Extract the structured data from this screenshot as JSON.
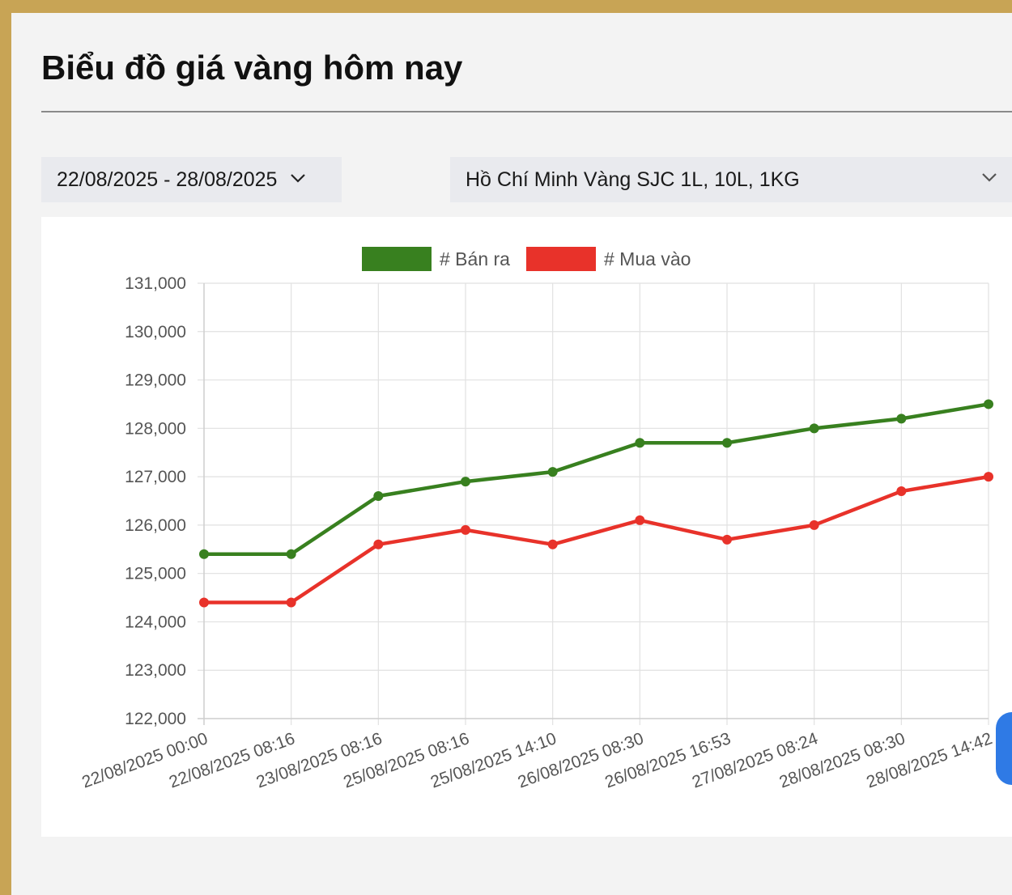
{
  "page": {
    "title": "Biểu đồ giá vàng hôm nay"
  },
  "filters": {
    "date_range": "22/08/2025 - 28/08/2025",
    "product": "Hồ Chí Minh Vàng SJC 1L, 10L, 1KG"
  },
  "colors": {
    "ban_ra": "#38801f",
    "mua_vao": "#e8322a",
    "frame": "#c8a455"
  },
  "chart_data": {
    "type": "line",
    "title": "",
    "xlabel": "",
    "ylabel": "",
    "ylim": [
      122000,
      131000
    ],
    "grid": true,
    "legend": "top",
    "categories": [
      "22/08/2025 00:00",
      "22/08/2025 08:16",
      "23/08/2025 08:16",
      "25/08/2025 08:16",
      "25/08/2025 14:10",
      "26/08/2025 08:30",
      "26/08/2025 16:53",
      "27/08/2025 08:24",
      "28/08/2025 08:30",
      "28/08/2025 14:42"
    ],
    "yticks": [
      "131,000",
      "130,000",
      "129,000",
      "128,000",
      "127,000",
      "126,000",
      "125,000",
      "124,000",
      "123,000",
      "122,000"
    ],
    "series": [
      {
        "name": "# Bán ra",
        "color": "#38801f",
        "values": [
          125400,
          125400,
          126600,
          126900,
          127100,
          127700,
          127700,
          128000,
          128200,
          128500
        ]
      },
      {
        "name": "# Mua vào",
        "color": "#e8322a",
        "values": [
          124400,
          124400,
          125600,
          125900,
          125600,
          126100,
          125700,
          126000,
          126700,
          127000
        ]
      }
    ]
  }
}
